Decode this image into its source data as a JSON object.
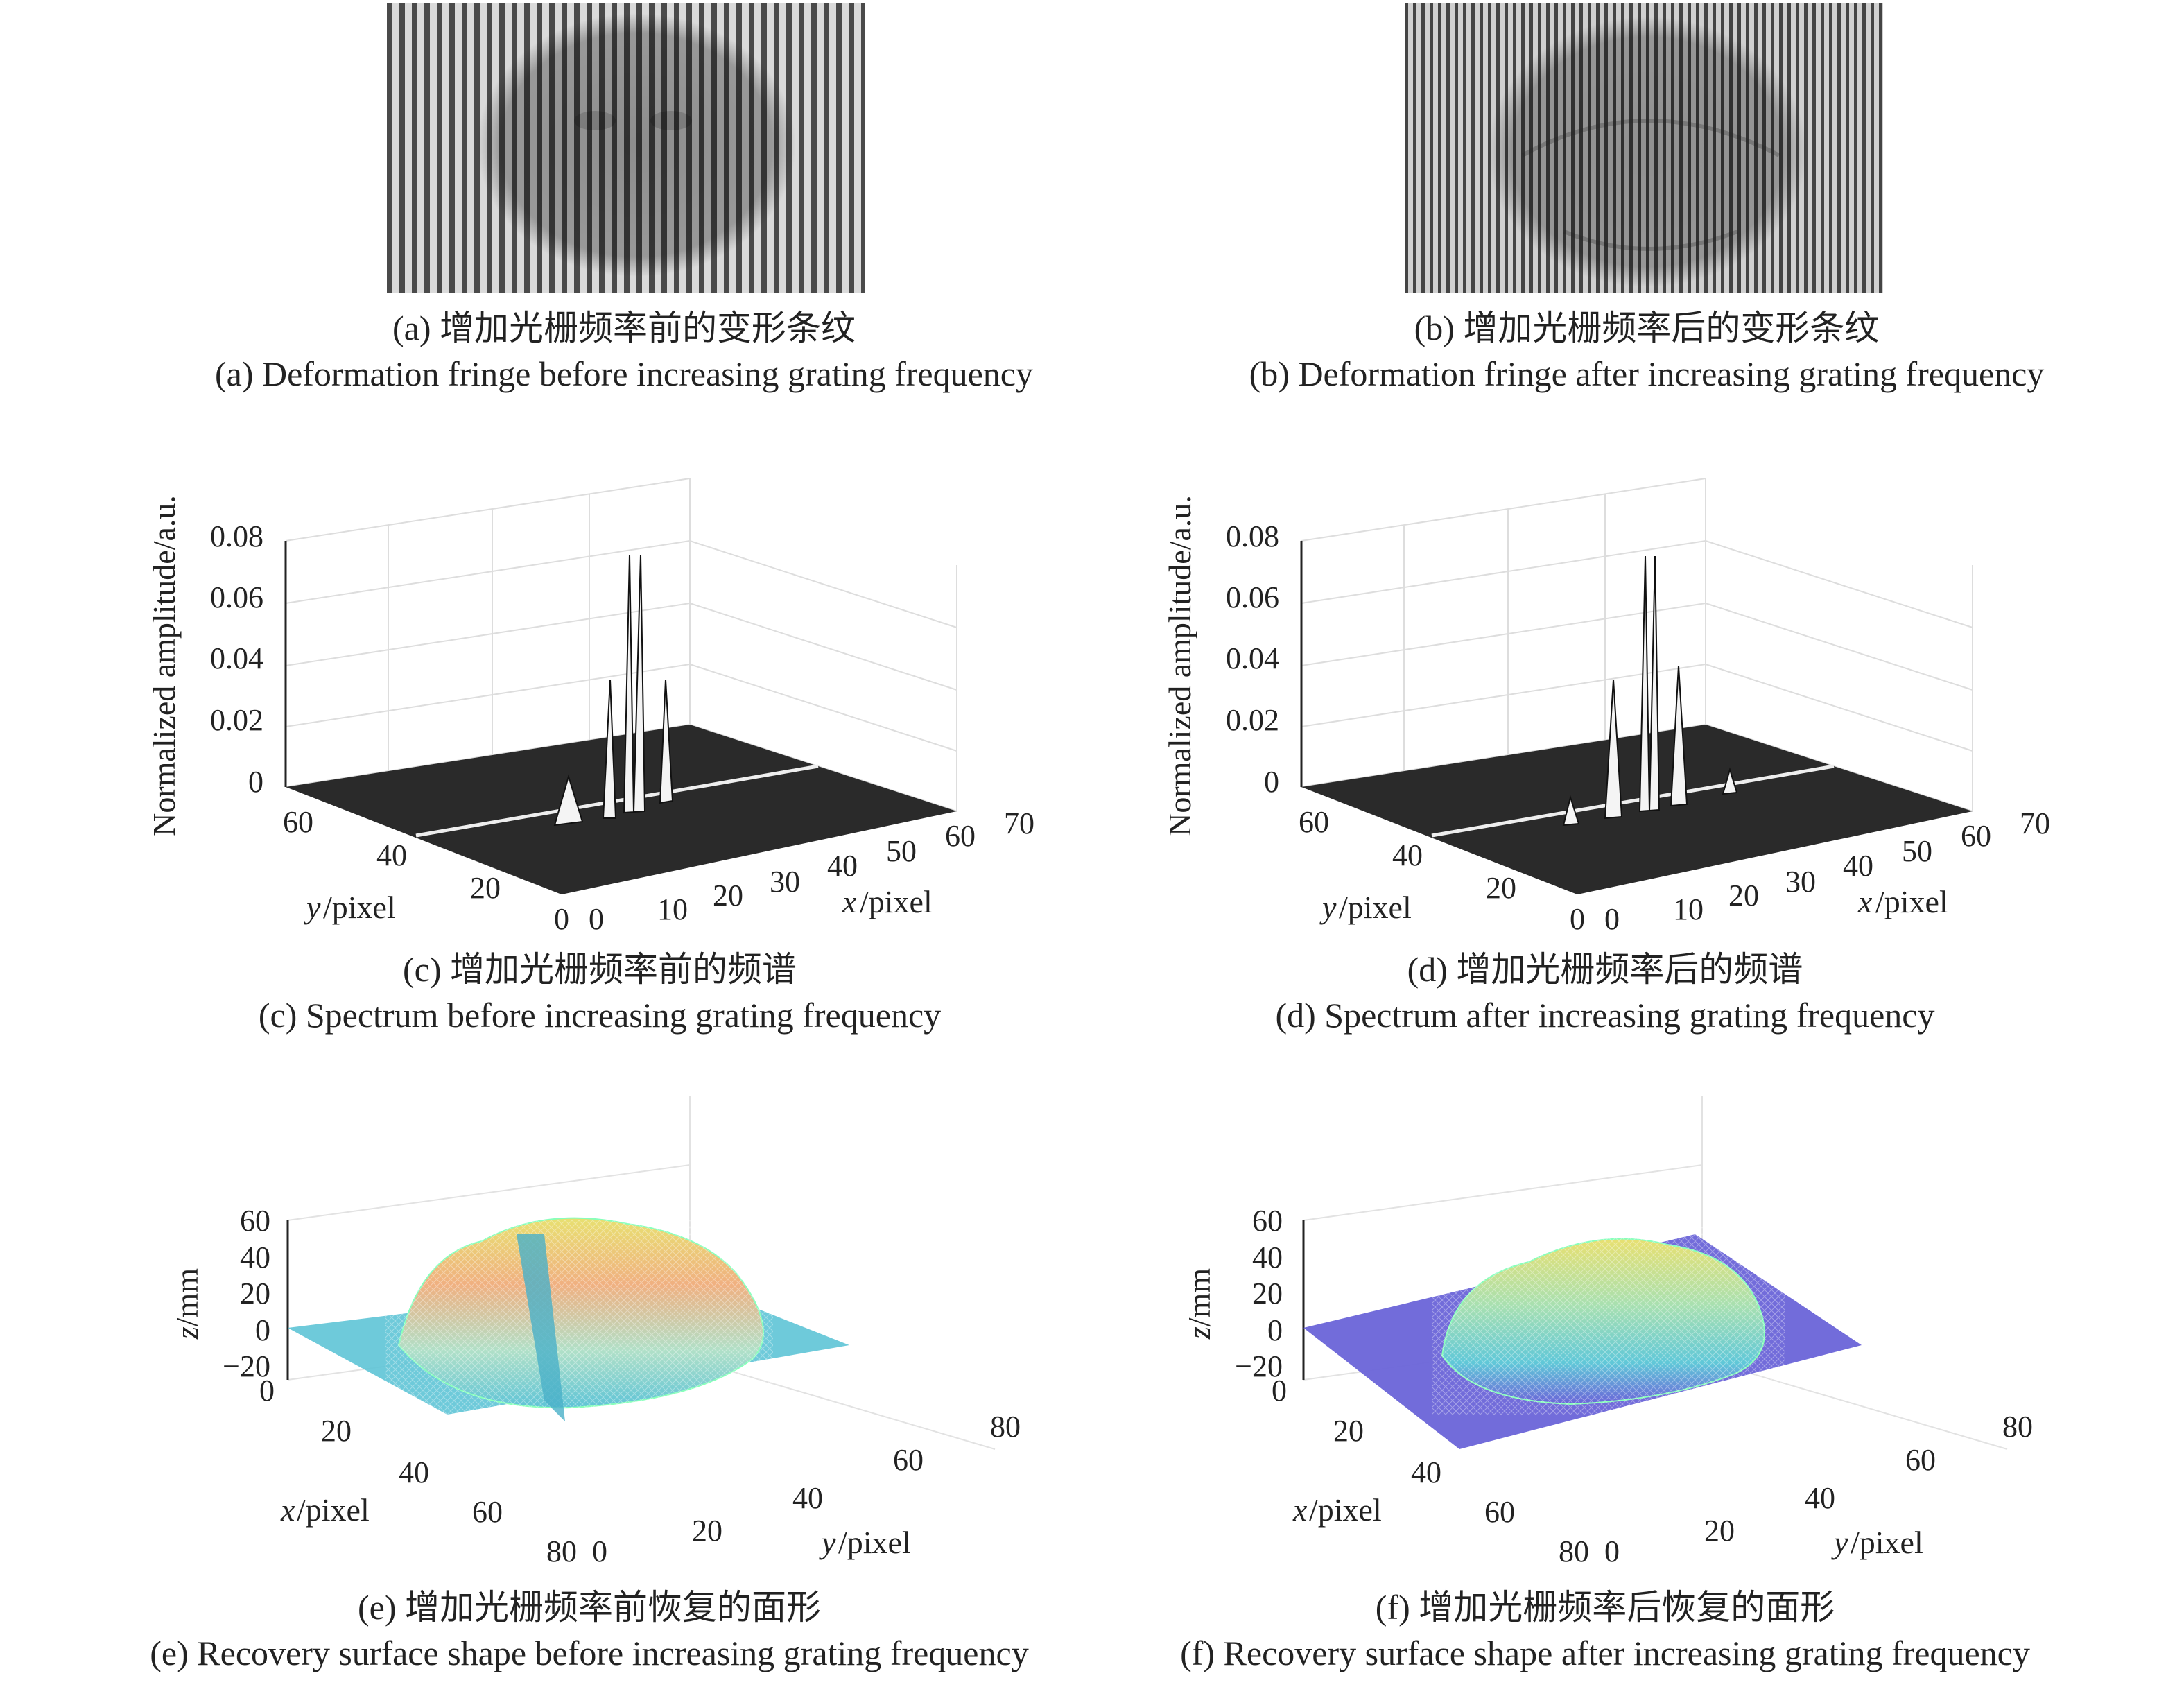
{
  "panels": {
    "a": {
      "caption_zh": "(a) 增加光栅频率前的变形条纹",
      "caption_en": "(a) Deformation fringe before increasing grating frequency"
    },
    "b": {
      "caption_zh": "(b) 增加光栅频率后的变形条纹",
      "caption_en": "(b) Deformation fringe after increasing grating frequency"
    },
    "c": {
      "caption_zh": "(c) 增加光栅频率前的频谱",
      "caption_en": "(c) Spectrum before increasing grating frequency"
    },
    "d": {
      "caption_zh": "(d) 增加光栅频率后的频谱",
      "caption_en": "(d) Spectrum after increasing grating frequency"
    },
    "e": {
      "caption_zh": "(e) 增加光栅频率前恢复的面形",
      "caption_en": "(e) Recovery surface shape before increasing grating frequency"
    },
    "f": {
      "caption_zh": "(f) 增加光栅频率后恢复的面形",
      "caption_en": "(f) Recovery surface shape after increasing grating frequency"
    }
  },
  "spectrum_axes": {
    "zlabel": "Normalized amplitude/a.u.",
    "xlabel_var": "x",
    "ylabel_var": "y",
    "unit": "/pixel",
    "zticks": [
      "0.08",
      "0.06",
      "0.04",
      "0.02",
      "0"
    ],
    "yticks": [
      "60",
      "40",
      "20",
      "0"
    ],
    "xticks": [
      "0",
      "10",
      "20",
      "30",
      "40",
      "50",
      "60",
      "70"
    ]
  },
  "surface_axes": {
    "zlabel_var": "z",
    "zlabel_unit": "/mm",
    "xlabel_var": "x",
    "ylabel_var": "y",
    "unit": "/pixel",
    "zticks": [
      "60",
      "40",
      "20",
      "0",
      "−20"
    ],
    "xticks": [
      "0",
      "20",
      "40",
      "60",
      "80"
    ],
    "yticks": [
      "0",
      "20",
      "40",
      "60",
      "80"
    ]
  },
  "colors": {
    "fringe_light": "#d4d4d4",
    "fringe_dark": "#3a3a3a",
    "surface_e_base": "#5ec4d6",
    "surface_f_base": "#6a64d8",
    "surface_peak": "#e8e070",
    "surface_warm": "#f0b080"
  }
}
